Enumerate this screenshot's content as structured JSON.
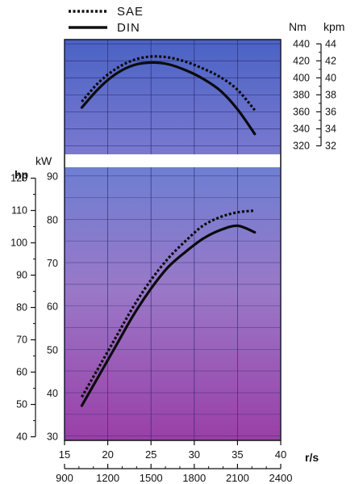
{
  "chart_data": [
    {
      "type": "line",
      "title": "",
      "legend": {
        "placement": "top-left",
        "entries": [
          {
            "label": "SAE",
            "style": "dotted"
          },
          {
            "label": "DIN",
            "style": "solid"
          }
        ]
      },
      "xlabel": "r/s",
      "x_ticks": [
        "15",
        "20",
        "25",
        "30",
        "35",
        "40"
      ],
      "x_secondary_ticks": [
        "900",
        "1200",
        "1500",
        "1800",
        "2100",
        "2400"
      ],
      "xlim": [
        15,
        40
      ],
      "ylabel": "Nm",
      "ylabel_secondary": "kpm",
      "ylim": [
        310,
        445
      ],
      "y_ticks": [
        "320",
        "340",
        "360",
        "380",
        "400",
        "420",
        "440"
      ],
      "y_secondary_ticks": [
        "32",
        "34",
        "36",
        "38",
        "40",
        "42",
        "44"
      ],
      "series": [
        {
          "name": "SAE",
          "x": [
            17,
            19,
            21,
            23,
            25,
            27,
            29,
            31,
            33,
            35,
            37
          ],
          "y": [
            372,
            395,
            411,
            421,
            425,
            424,
            419,
            411,
            401,
            386,
            362
          ]
        },
        {
          "name": "DIN",
          "x": [
            17,
            19,
            21,
            23,
            25,
            27,
            29,
            31,
            33,
            35,
            37
          ],
          "y": [
            365,
            388,
            405,
            415,
            418,
            416,
            409,
            399,
            385,
            363,
            334
          ]
        }
      ]
    },
    {
      "type": "line",
      "title": "",
      "xlabel": "r/s",
      "xlim": [
        15,
        40
      ],
      "ylabel": "kW",
      "ylabel_secondary": "hp",
      "ylim": [
        29,
        92
      ],
      "y_ticks": [
        "30",
        "40",
        "50",
        "60",
        "70",
        "80",
        "90"
      ],
      "y_secondary_ticks": [
        "40",
        "50",
        "60",
        "70",
        "80",
        "90",
        "100",
        "110",
        "120"
      ],
      "series": [
        {
          "name": "SAE",
          "x": [
            17,
            19,
            21,
            23,
            25,
            27,
            29,
            31,
            33,
            35,
            37
          ],
          "y": [
            39,
            46,
            53,
            60,
            66,
            71,
            75,
            78.5,
            80.5,
            81.6,
            82
          ]
        },
        {
          "name": "DIN",
          "x": [
            17,
            19,
            21,
            23,
            25,
            27,
            29,
            31,
            33,
            35,
            37
          ],
          "y": [
            37,
            44,
            51,
            58,
            64,
            69,
            72.5,
            75.5,
            77.5,
            78.5,
            77
          ]
        }
      ]
    }
  ]
}
